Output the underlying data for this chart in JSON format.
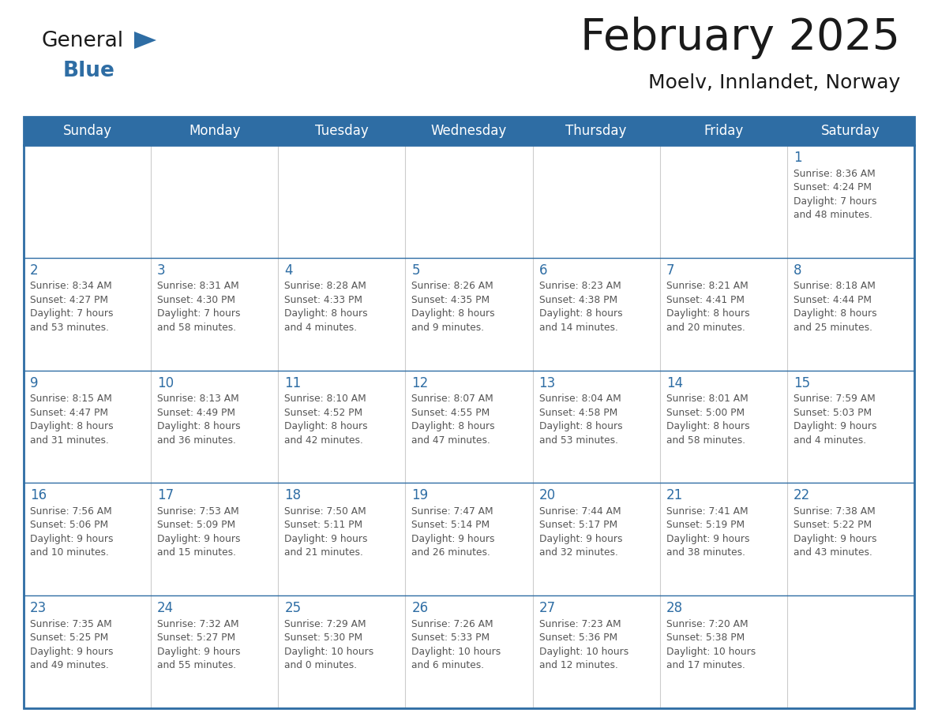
{
  "title": "February 2025",
  "subtitle": "Moelv, Innlandet, Norway",
  "header_bg": "#2E6DA4",
  "header_text_color": "#FFFFFF",
  "cell_bg": "#FFFFFF",
  "border_color": "#2E6DA4",
  "cell_border_color": "#AAAAAA",
  "text_color": "#555555",
  "day_num_color": "#2E6DA4",
  "days_of_week": [
    "Sunday",
    "Monday",
    "Tuesday",
    "Wednesday",
    "Thursday",
    "Friday",
    "Saturday"
  ],
  "calendar_data": [
    [
      null,
      null,
      null,
      null,
      null,
      null,
      {
        "day": 1,
        "sunrise": "8:36 AM",
        "sunset": "4:24 PM",
        "daylight": "7 hours",
        "daylight2": "and 48 minutes."
      }
    ],
    [
      {
        "day": 2,
        "sunrise": "8:34 AM",
        "sunset": "4:27 PM",
        "daylight": "7 hours",
        "daylight2": "and 53 minutes."
      },
      {
        "day": 3,
        "sunrise": "8:31 AM",
        "sunset": "4:30 PM",
        "daylight": "7 hours",
        "daylight2": "and 58 minutes."
      },
      {
        "day": 4,
        "sunrise": "8:28 AM",
        "sunset": "4:33 PM",
        "daylight": "8 hours",
        "daylight2": "and 4 minutes."
      },
      {
        "day": 5,
        "sunrise": "8:26 AM",
        "sunset": "4:35 PM",
        "daylight": "8 hours",
        "daylight2": "and 9 minutes."
      },
      {
        "day": 6,
        "sunrise": "8:23 AM",
        "sunset": "4:38 PM",
        "daylight": "8 hours",
        "daylight2": "and 14 minutes."
      },
      {
        "day": 7,
        "sunrise": "8:21 AM",
        "sunset": "4:41 PM",
        "daylight": "8 hours",
        "daylight2": "and 20 minutes."
      },
      {
        "day": 8,
        "sunrise": "8:18 AM",
        "sunset": "4:44 PM",
        "daylight": "8 hours",
        "daylight2": "and 25 minutes."
      }
    ],
    [
      {
        "day": 9,
        "sunrise": "8:15 AM",
        "sunset": "4:47 PM",
        "daylight": "8 hours",
        "daylight2": "and 31 minutes."
      },
      {
        "day": 10,
        "sunrise": "8:13 AM",
        "sunset": "4:49 PM",
        "daylight": "8 hours",
        "daylight2": "and 36 minutes."
      },
      {
        "day": 11,
        "sunrise": "8:10 AM",
        "sunset": "4:52 PM",
        "daylight": "8 hours",
        "daylight2": "and 42 minutes."
      },
      {
        "day": 12,
        "sunrise": "8:07 AM",
        "sunset": "4:55 PM",
        "daylight": "8 hours",
        "daylight2": "and 47 minutes."
      },
      {
        "day": 13,
        "sunrise": "8:04 AM",
        "sunset": "4:58 PM",
        "daylight": "8 hours",
        "daylight2": "and 53 minutes."
      },
      {
        "day": 14,
        "sunrise": "8:01 AM",
        "sunset": "5:00 PM",
        "daylight": "8 hours",
        "daylight2": "and 58 minutes."
      },
      {
        "day": 15,
        "sunrise": "7:59 AM",
        "sunset": "5:03 PM",
        "daylight": "9 hours",
        "daylight2": "and 4 minutes."
      }
    ],
    [
      {
        "day": 16,
        "sunrise": "7:56 AM",
        "sunset": "5:06 PM",
        "daylight": "9 hours",
        "daylight2": "and 10 minutes."
      },
      {
        "day": 17,
        "sunrise": "7:53 AM",
        "sunset": "5:09 PM",
        "daylight": "9 hours",
        "daylight2": "and 15 minutes."
      },
      {
        "day": 18,
        "sunrise": "7:50 AM",
        "sunset": "5:11 PM",
        "daylight": "9 hours",
        "daylight2": "and 21 minutes."
      },
      {
        "day": 19,
        "sunrise": "7:47 AM",
        "sunset": "5:14 PM",
        "daylight": "9 hours",
        "daylight2": "and 26 minutes."
      },
      {
        "day": 20,
        "sunrise": "7:44 AM",
        "sunset": "5:17 PM",
        "daylight": "9 hours",
        "daylight2": "and 32 minutes."
      },
      {
        "day": 21,
        "sunrise": "7:41 AM",
        "sunset": "5:19 PM",
        "daylight": "9 hours",
        "daylight2": "and 38 minutes."
      },
      {
        "day": 22,
        "sunrise": "7:38 AM",
        "sunset": "5:22 PM",
        "daylight": "9 hours",
        "daylight2": "and 43 minutes."
      }
    ],
    [
      {
        "day": 23,
        "sunrise": "7:35 AM",
        "sunset": "5:25 PM",
        "daylight": "9 hours",
        "daylight2": "and 49 minutes."
      },
      {
        "day": 24,
        "sunrise": "7:32 AM",
        "sunset": "5:27 PM",
        "daylight": "9 hours",
        "daylight2": "and 55 minutes."
      },
      {
        "day": 25,
        "sunrise": "7:29 AM",
        "sunset": "5:30 PM",
        "daylight": "10 hours",
        "daylight2": "and 0 minutes."
      },
      {
        "day": 26,
        "sunrise": "7:26 AM",
        "sunset": "5:33 PM",
        "daylight": "10 hours",
        "daylight2": "and 6 minutes."
      },
      {
        "day": 27,
        "sunrise": "7:23 AM",
        "sunset": "5:36 PM",
        "daylight": "10 hours",
        "daylight2": "and 12 minutes."
      },
      {
        "day": 28,
        "sunrise": "7:20 AM",
        "sunset": "5:38 PM",
        "daylight": "10 hours",
        "daylight2": "and 17 minutes."
      },
      null
    ]
  ]
}
